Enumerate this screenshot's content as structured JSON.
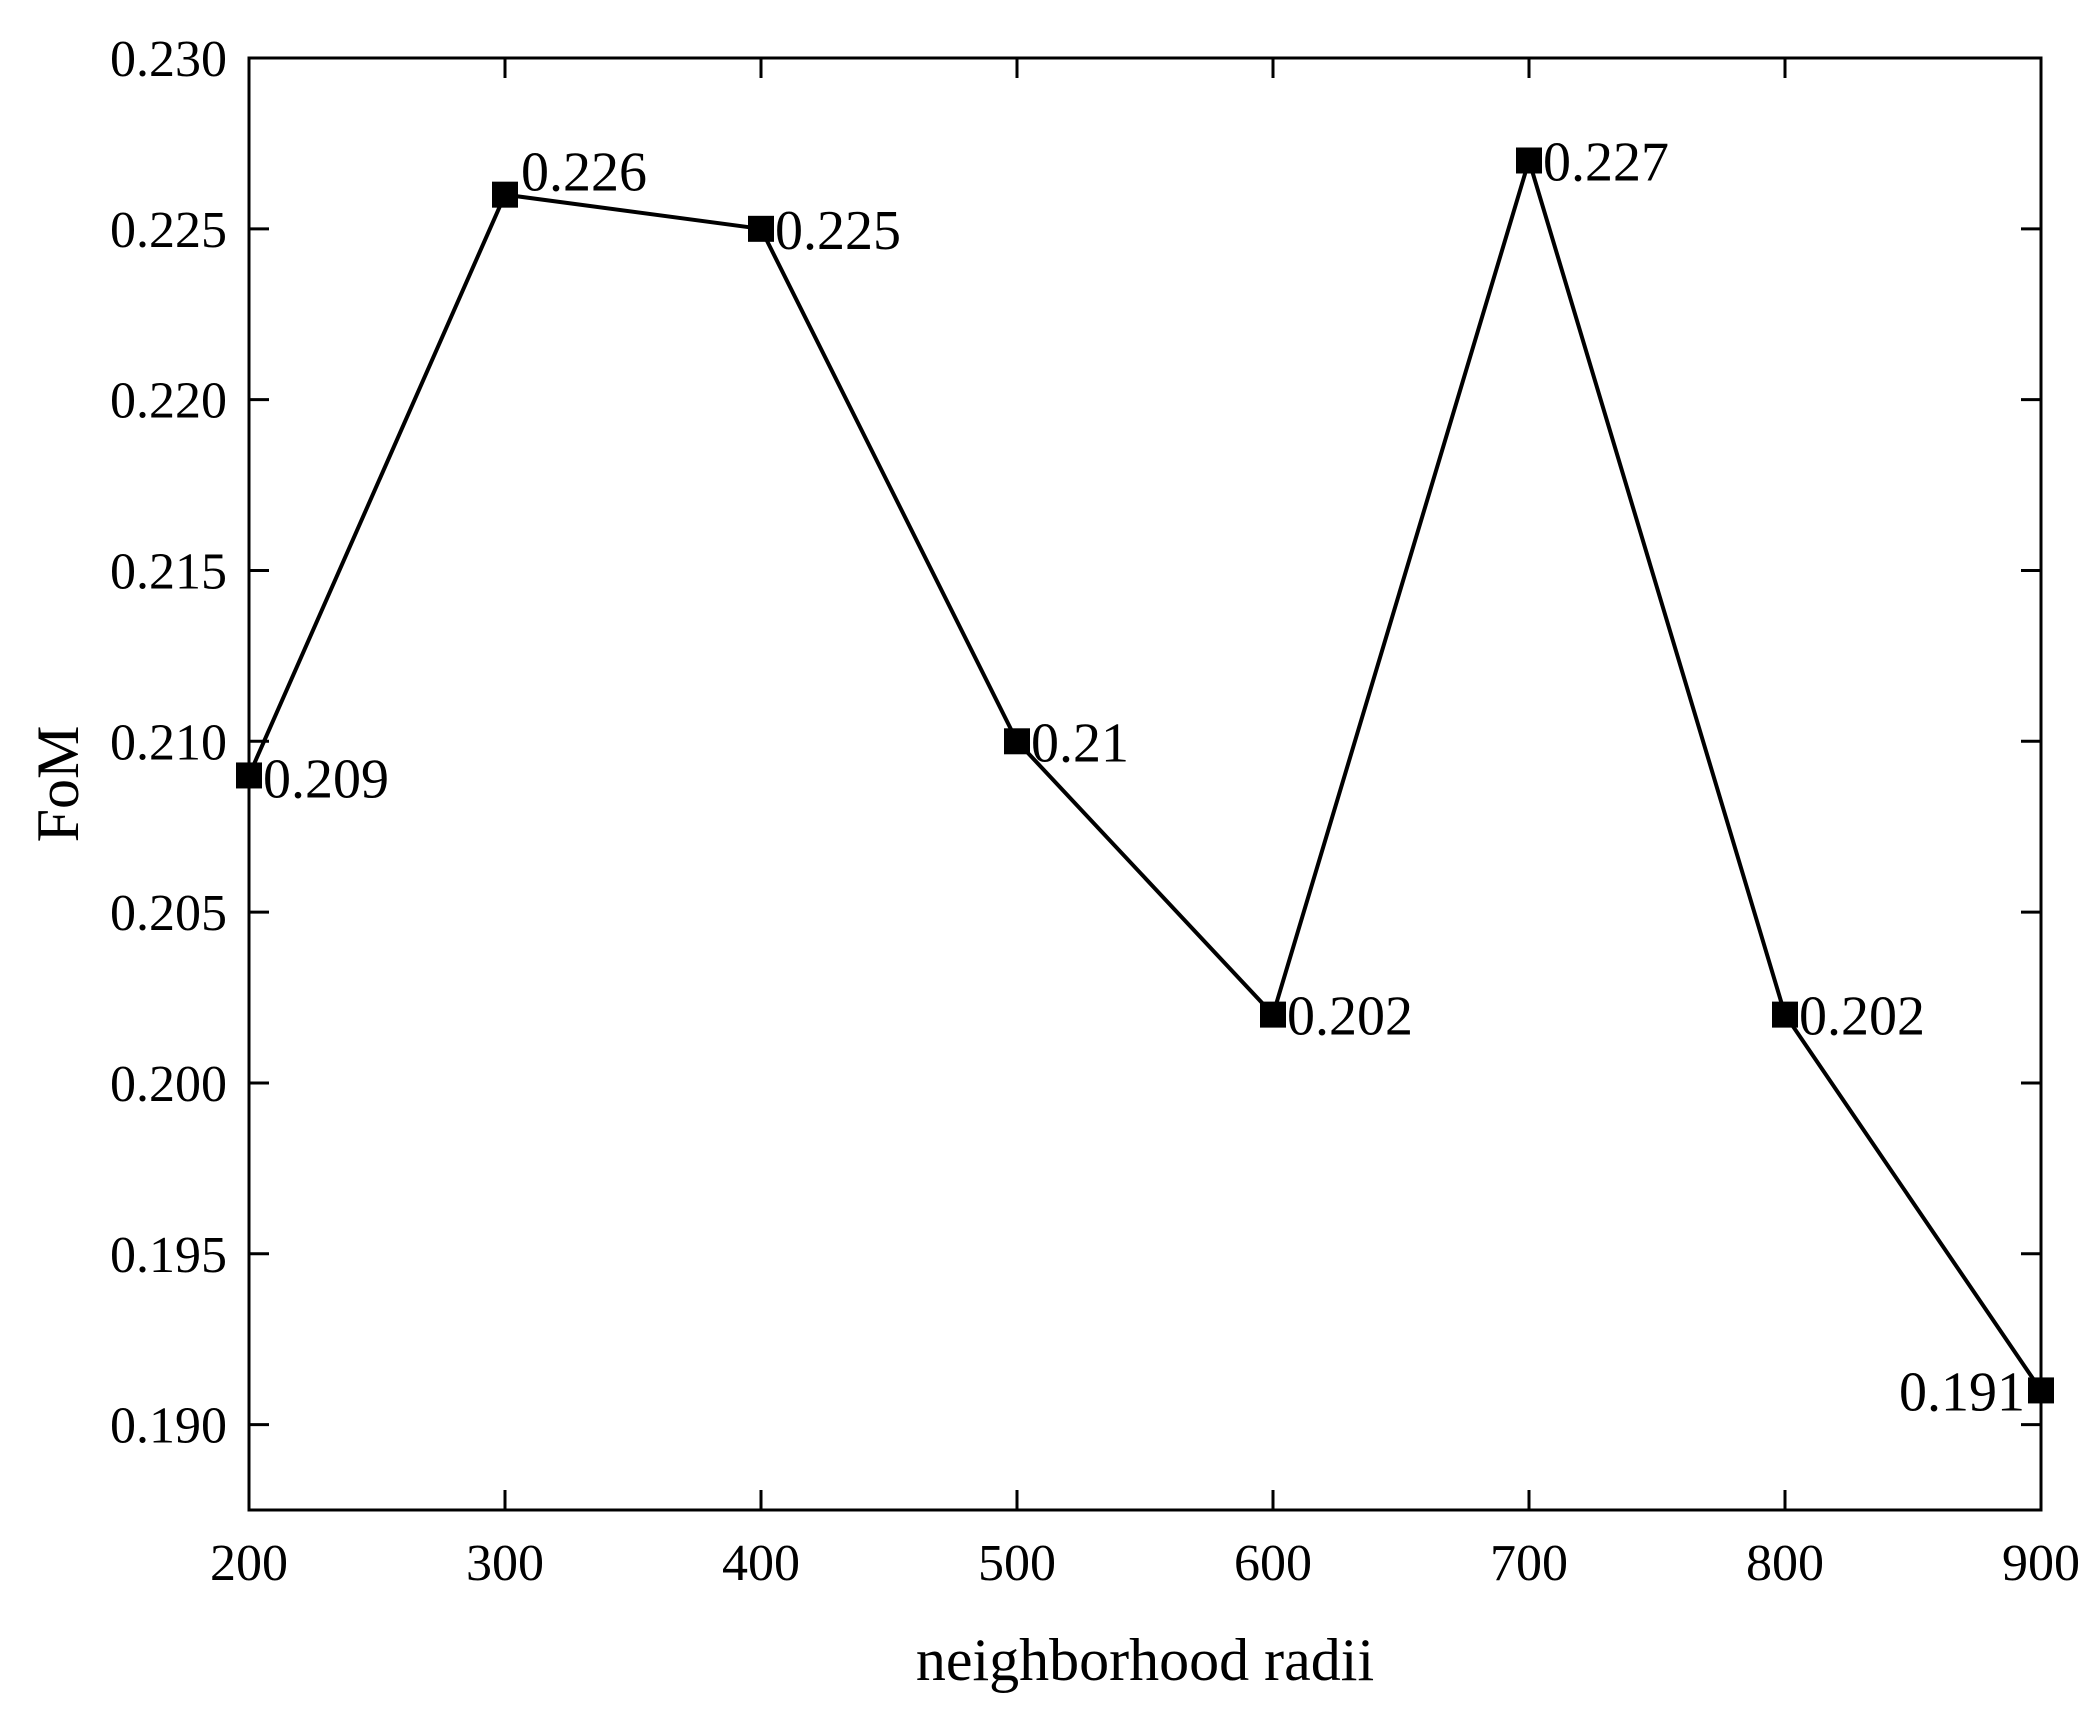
{
  "chart_data": {
    "type": "line",
    "title": "",
    "xlabel": "neighborhood radii",
    "ylabel": "FoM",
    "x": [
      200,
      300,
      400,
      500,
      600,
      700,
      800,
      900
    ],
    "series": [
      {
        "values": [
          0.209,
          0.226,
          0.225,
          0.21,
          0.202,
          0.227,
          0.202,
          0.191
        ],
        "data_labels": [
          "0.209",
          "0.226",
          "0.225",
          "0.21",
          "0.202",
          "0.227",
          "0.202",
          "0.191"
        ],
        "marker": "square",
        "color": "#000000"
      }
    ],
    "xlim": [
      200,
      900
    ],
    "ylim": [
      0.1875,
      0.23
    ],
    "xticks": [
      "200",
      "300",
      "400",
      "500",
      "600",
      "700",
      "800",
      "900"
    ],
    "yticks": [
      "0.190",
      "0.195",
      "0.200",
      "0.205",
      "0.210",
      "0.215",
      "0.220",
      "0.225",
      "0.230"
    ],
    "grid": false,
    "legend": "none"
  }
}
